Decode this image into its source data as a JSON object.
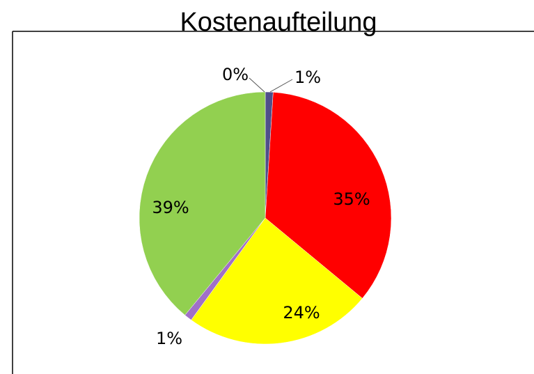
{
  "chart_data": {
    "type": "pie",
    "title": "Kostenaufteilung",
    "values": [
      0,
      1,
      35,
      24,
      1,
      39
    ],
    "value_labels": [
      "0%",
      "1%",
      "35%",
      "24%",
      "1%",
      "39%"
    ],
    "colors": [
      "#4f81bd",
      "#4f4f8a",
      "#ff0000",
      "#ffff00",
      "#a070c8",
      "#92d050"
    ]
  }
}
